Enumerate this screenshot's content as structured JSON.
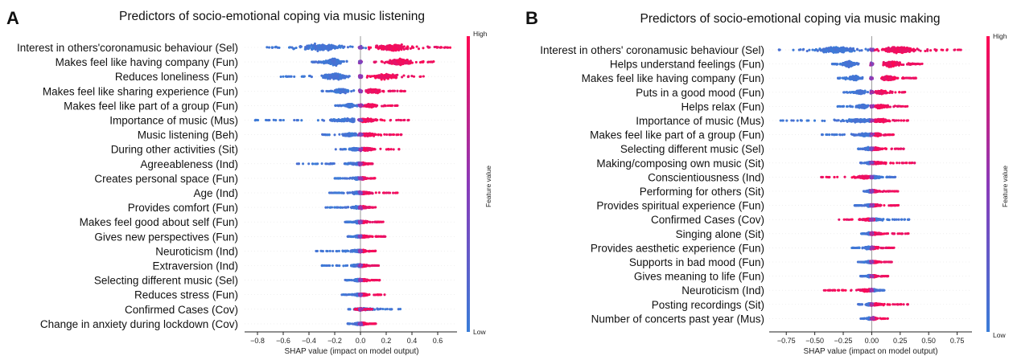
{
  "panel_labels": [
    "A",
    "B"
  ],
  "colors": {
    "low": "#3a7dd8",
    "high": "#ff0852",
    "mid": "#8a3ab9",
    "zero_line": "#999999"
  },
  "chart_data": [
    {
      "type": "scatter",
      "subtype": "shap-beeswarm",
      "title": "Predictors of socio-emotional coping via music listening",
      "xlabel": "SHAP value (impact on model output)",
      "xlim": [
        -0.9,
        0.75
      ],
      "xticks": [
        -0.8,
        -0.6,
        -0.4,
        -0.2,
        0.0,
        0.2,
        0.4,
        0.6
      ],
      "xtick_labels": [
        "−0.8",
        "−0.6",
        "−0.4",
        "−0.2",
        "0.0",
        "0.2",
        "0.4",
        "0.6"
      ],
      "colorbar": {
        "label": "Feature value",
        "high": "High",
        "low": "Low"
      },
      "features": [
        {
          "name": "Interest in others'coronamusic behaviour (Sel)",
          "low_range": [
            -0.75,
            0.05
          ],
          "high_range": [
            0.05,
            0.72
          ],
          "low_center": -0.3,
          "high_center": 0.25
        },
        {
          "name": "Makes feel like having company (Fun)",
          "low_range": [
            -0.38,
            -0.1
          ],
          "high_range": [
            0.1,
            0.58
          ],
          "low_center": -0.2,
          "high_center": 0.3
        },
        {
          "name": "Reduces loneliness (Fun)",
          "low_range": [
            -0.62,
            -0.05
          ],
          "high_range": [
            0.05,
            0.5
          ],
          "low_center": -0.2,
          "high_center": 0.2
        },
        {
          "name": "Makes feel like sharing experience (Fun)",
          "low_range": [
            -0.3,
            -0.05
          ],
          "high_range": [
            0.03,
            0.35
          ],
          "low_center": -0.15,
          "high_center": 0.1
        },
        {
          "name": "Makes feel like part of a group (Fun)",
          "low_range": [
            -0.2,
            -0.02
          ],
          "high_range": [
            0.02,
            0.3
          ],
          "low_center": -0.08,
          "high_center": 0.08
        },
        {
          "name": "Importance of music (Mus)",
          "low_range": [
            -0.82,
            -0.05
          ],
          "high_range": [
            0.0,
            0.4
          ],
          "low_center": -0.1,
          "high_center": 0.05
        },
        {
          "name": "Music listening (Beh)",
          "low_range": [
            -0.3,
            -0.02
          ],
          "high_range": [
            0.0,
            0.32
          ],
          "low_center": -0.08,
          "high_center": 0.05
        },
        {
          "name": "During other activities (Sit)",
          "low_range": [
            -0.2,
            -0.01
          ],
          "high_range": [
            0.0,
            0.32
          ],
          "low_center": -0.04,
          "high_center": 0.05
        },
        {
          "name": "Agreeableness (Ind)",
          "low_range": [
            -0.5,
            -0.01
          ],
          "high_range": [
            0.0,
            0.1
          ],
          "low_center": -0.02,
          "high_center": 0.02
        },
        {
          "name": "Creates personal space (Fun)",
          "low_range": [
            -0.2,
            -0.01
          ],
          "high_range": [
            0.0,
            0.12
          ],
          "low_center": -0.02,
          "high_center": 0.02
        },
        {
          "name": "Age (Ind)",
          "low_range": [
            -0.25,
            -0.01
          ],
          "high_range": [
            0.0,
            0.3
          ],
          "low_center": -0.02,
          "high_center": 0.03
        },
        {
          "name": "Provides comfort (Fun)",
          "low_range": [
            -0.28,
            -0.01
          ],
          "high_range": [
            0.0,
            0.12
          ],
          "low_center": -0.02,
          "high_center": 0.02
        },
        {
          "name": "Makes feel good about self (Fun)",
          "low_range": [
            -0.12,
            -0.01
          ],
          "high_range": [
            0.0,
            0.18
          ],
          "low_center": -0.02,
          "high_center": 0.02
        },
        {
          "name": "Gives new perspectives (Fun)",
          "low_range": [
            -0.1,
            -0.01
          ],
          "high_range": [
            0.0,
            0.2
          ],
          "low_center": -0.02,
          "high_center": 0.02
        },
        {
          "name": "Neuroticism (Ind)",
          "low_range": [
            -0.35,
            -0.01
          ],
          "high_range": [
            0.0,
            0.12
          ],
          "low_center": -0.02,
          "high_center": 0.02
        },
        {
          "name": "Extraversion (Ind)",
          "low_range": [
            -0.3,
            -0.01
          ],
          "high_range": [
            0.0,
            0.15
          ],
          "low_center": -0.02,
          "high_center": 0.02
        },
        {
          "name": "Selecting different music (Sel)",
          "low_range": [
            -0.12,
            -0.01
          ],
          "high_range": [
            0.0,
            0.15
          ],
          "low_center": -0.02,
          "high_center": 0.02
        },
        {
          "name": "Reduces stress (Fun)",
          "low_range": [
            -0.15,
            -0.01
          ],
          "high_range": [
            0.0,
            0.2
          ],
          "low_center": -0.02,
          "high_center": 0.02
        },
        {
          "name": "Confirmed Cases (Cov)",
          "low_range": [
            -0.1,
            0.32
          ],
          "high_range": [
            -0.05,
            0.1
          ],
          "low_center": 0.02,
          "high_center": 0.0
        },
        {
          "name": "Change in anxiety during lockdown (Cov)",
          "low_range": [
            -0.1,
            -0.01
          ],
          "high_range": [
            0.0,
            0.12
          ],
          "low_center": -0.02,
          "high_center": 0.02
        }
      ]
    },
    {
      "type": "scatter",
      "subtype": "shap-beeswarm",
      "title": "Predictors of socio-emotional coping via music making",
      "xlabel": "SHAP value (impact on model output)",
      "xlim": [
        -0.9,
        0.88
      ],
      "xticks": [
        -0.75,
        -0.5,
        -0.25,
        0.0,
        0.25,
        0.5,
        0.75
      ],
      "xtick_labels": [
        "−0.75",
        "−0.50",
        "−0.25",
        "0.00",
        "0.25",
        "0.50",
        "0.75"
      ],
      "colorbar": {
        "label": "Feature value",
        "high": "High",
        "low": "Low"
      },
      "features": [
        {
          "name": "Interest in others' coronamusic behaviour (Sel)",
          "low_range": [
            -0.85,
            0.05
          ],
          "high_range": [
            0.0,
            0.82
          ],
          "low_center": -0.3,
          "high_center": 0.25
        },
        {
          "name": "Helps understand feelings (Fun)",
          "low_range": [
            -0.35,
            -0.1
          ],
          "high_range": [
            0.1,
            0.45
          ],
          "low_center": -0.2,
          "high_center": 0.18
        },
        {
          "name": "Makes feel like having company (Fun)",
          "low_range": [
            -0.3,
            -0.08
          ],
          "high_range": [
            0.08,
            0.4
          ],
          "low_center": -0.15,
          "high_center": 0.15
        },
        {
          "name": "Puts in a good mood (Fun)",
          "low_range": [
            -0.25,
            -0.02
          ],
          "high_range": [
            0.0,
            0.3
          ],
          "low_center": -0.1,
          "high_center": 0.08
        },
        {
          "name": "Helps relax (Fun)",
          "low_range": [
            -0.3,
            -0.02
          ],
          "high_range": [
            0.0,
            0.32
          ],
          "low_center": -0.08,
          "high_center": 0.08
        },
        {
          "name": "Importance of music (Mus)",
          "low_range": [
            -0.8,
            -0.02
          ],
          "high_range": [
            0.0,
            0.32
          ],
          "low_center": -0.08,
          "high_center": 0.08
        },
        {
          "name": "Makes feel like part of a group (Fun)",
          "low_range": [
            -0.45,
            -0.02
          ],
          "high_range": [
            0.0,
            0.2
          ],
          "low_center": -0.05,
          "high_center": 0.05
        },
        {
          "name": "Selecting different music (Sel)",
          "low_range": [
            -0.12,
            -0.01
          ],
          "high_range": [
            0.0,
            0.3
          ],
          "low_center": -0.03,
          "high_center": 0.03
        },
        {
          "name": "Making/composing own music (Sit)",
          "low_range": [
            -0.1,
            -0.01
          ],
          "high_range": [
            0.0,
            0.38
          ],
          "low_center": -0.02,
          "high_center": 0.03
        },
        {
          "name": "Conscientiousness (Ind)",
          "low_range": [
            0.0,
            0.22
          ],
          "high_range": [
            -0.45,
            -0.01
          ],
          "low_center": 0.03,
          "high_center": -0.05
        },
        {
          "name": "Performing for others (Sit)",
          "low_range": [
            -0.08,
            -0.01
          ],
          "high_range": [
            0.0,
            0.25
          ],
          "low_center": -0.02,
          "high_center": 0.02
        },
        {
          "name": "Provides spiritual experience (Fun)",
          "low_range": [
            -0.15,
            -0.01
          ],
          "high_range": [
            0.0,
            0.25
          ],
          "low_center": -0.02,
          "high_center": 0.02
        },
        {
          "name": "Confirmed Cases (Cov)",
          "low_range": [
            -0.02,
            0.33
          ],
          "high_range": [
            -0.3,
            0.02
          ],
          "low_center": 0.02,
          "high_center": -0.02
        },
        {
          "name": "Singing alone (Sit)",
          "low_range": [
            -0.1,
            -0.01
          ],
          "high_range": [
            0.0,
            0.33
          ],
          "low_center": -0.02,
          "high_center": 0.02
        },
        {
          "name": "Provides aesthetic experience (Fun)",
          "low_range": [
            -0.18,
            -0.01
          ],
          "high_range": [
            0.0,
            0.2
          ],
          "low_center": -0.03,
          "high_center": 0.02
        },
        {
          "name": "Supports in bad mood (Fun)",
          "low_range": [
            -0.12,
            -0.01
          ],
          "high_range": [
            0.0,
            0.18
          ],
          "low_center": -0.02,
          "high_center": 0.02
        },
        {
          "name": "Gives meaning to life (Fun)",
          "low_range": [
            -0.1,
            -0.01
          ],
          "high_range": [
            0.0,
            0.15
          ],
          "low_center": -0.02,
          "high_center": 0.02
        },
        {
          "name": "Neuroticism (Ind)",
          "low_range": [
            0.0,
            0.12
          ],
          "high_range": [
            -0.42,
            -0.01
          ],
          "low_center": 0.02,
          "high_center": -0.03
        },
        {
          "name": "Posting recordings (Sit)",
          "low_range": [
            -0.12,
            -0.01
          ],
          "high_range": [
            0.0,
            0.32
          ],
          "low_center": -0.02,
          "high_center": 0.02
        },
        {
          "name": "Number of concerts past year (Mus)",
          "low_range": [
            -0.1,
            -0.01
          ],
          "high_range": [
            0.0,
            0.15
          ],
          "low_center": -0.02,
          "high_center": 0.02
        }
      ]
    }
  ]
}
